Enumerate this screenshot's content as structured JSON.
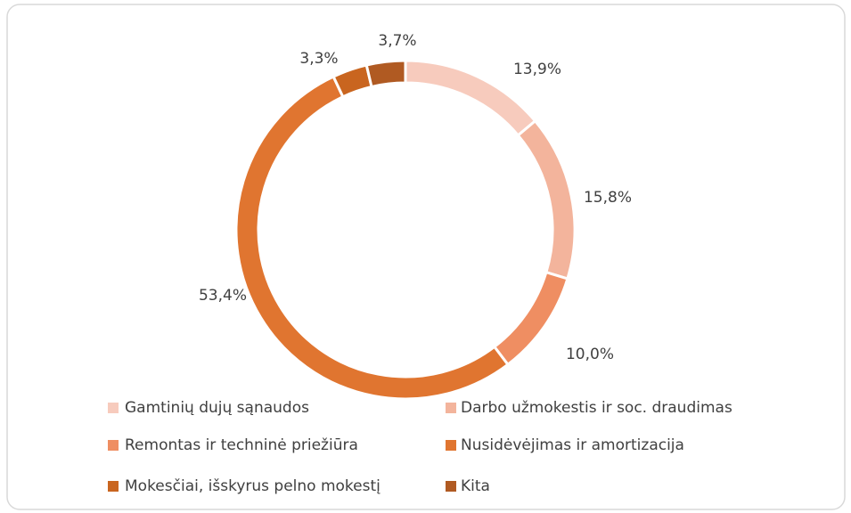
{
  "chart_data": {
    "type": "donut",
    "categories": [
      "Gamtinių dujų sąnaudos",
      "Darbo užmokestis ir soc. draudimas",
      "Remontas ir techninė priežiūra",
      "Nusidėvėjimas ir amortizacija",
      "Mokesčiai, išskyrus pelno mokestį",
      "Kita"
    ],
    "values": [
      13.9,
      15.8,
      10.0,
      53.4,
      3.3,
      3.7
    ],
    "value_labels": [
      "13,9%",
      "15,8%",
      "10,0%",
      "53,4%",
      "3,3%",
      "3,7%"
    ],
    "colors": [
      "#f7cbbd",
      "#f3b49c",
      "#ef8e62",
      "#e07530",
      "#c9651f",
      "#b05a22"
    ],
    "legend": "bottom"
  }
}
